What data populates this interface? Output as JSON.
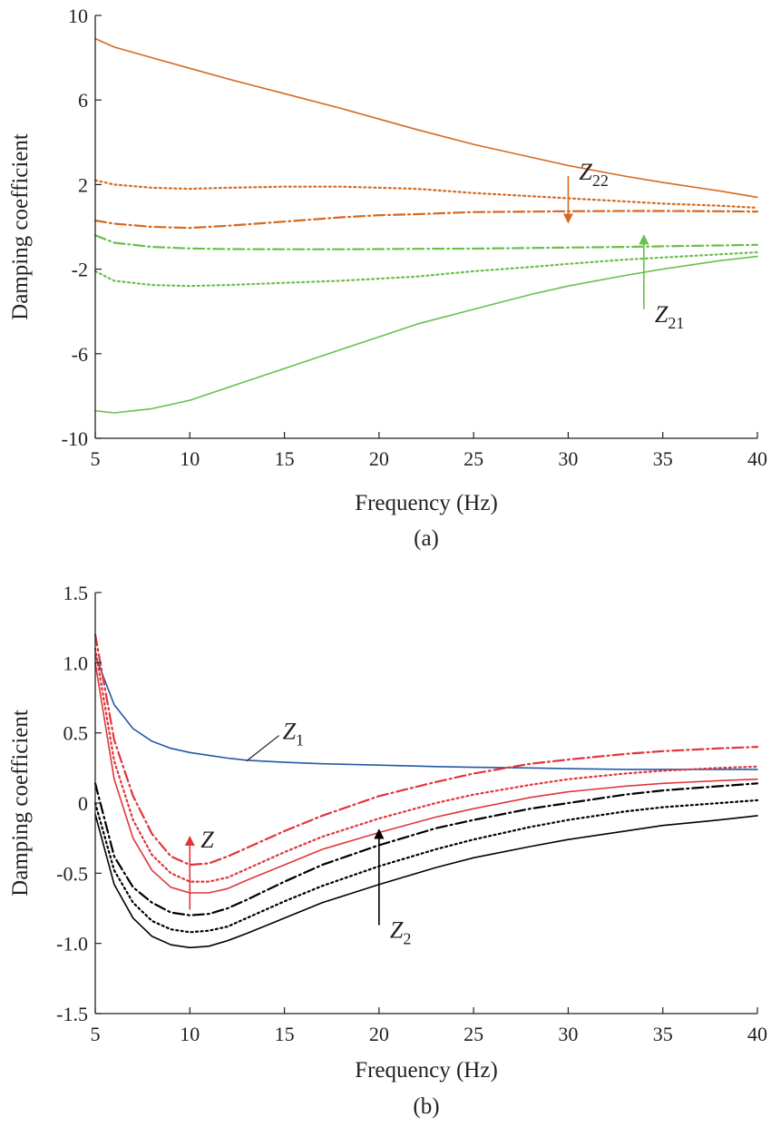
{
  "chart_data": [
    {
      "type": "line",
      "panel_label": "(a)",
      "xlabel": "Frequency (Hz)",
      "ylabel": "Damping coefficient",
      "xlim": [
        5,
        40
      ],
      "ylim": [
        -10,
        10
      ],
      "xticks": [
        "5",
        "10",
        "15",
        "20",
        "25",
        "30",
        "35",
        "40"
      ],
      "yticks": [
        "10",
        "6",
        "2",
        "-2",
        "-6",
        "-10"
      ],
      "grid": false,
      "x": [
        5,
        6,
        8,
        10,
        12,
        15,
        18,
        20,
        22,
        25,
        28,
        30,
        33,
        35,
        38,
        40
      ],
      "series": [
        {
          "group": "Z22",
          "color": "#d46a22",
          "style": "solid",
          "values": [
            8.9,
            8.5,
            8.0,
            7.5,
            7.0,
            6.3,
            5.6,
            5.1,
            4.6,
            3.9,
            3.3,
            2.9,
            2.4,
            2.1,
            1.7,
            1.4
          ]
        },
        {
          "group": "Z22",
          "color": "#d46a22",
          "style": "dotted",
          "values": [
            2.2,
            2.0,
            1.85,
            1.8,
            1.85,
            1.9,
            1.9,
            1.85,
            1.8,
            1.6,
            1.45,
            1.35,
            1.2,
            1.1,
            1.0,
            0.9
          ]
        },
        {
          "group": "Z22",
          "color": "#d46a22",
          "style": "dashdot",
          "values": [
            0.3,
            0.15,
            0.0,
            -0.05,
            0.05,
            0.25,
            0.45,
            0.55,
            0.6,
            0.7,
            0.72,
            0.74,
            0.75,
            0.75,
            0.74,
            0.72
          ]
        },
        {
          "group": "Z21",
          "color": "#6abf4b",
          "style": "dashdot",
          "values": [
            -0.4,
            -0.75,
            -0.95,
            -1.02,
            -1.05,
            -1.06,
            -1.06,
            -1.05,
            -1.04,
            -1.03,
            -1.0,
            -0.98,
            -0.95,
            -0.92,
            -0.88,
            -0.85
          ]
        },
        {
          "group": "Z21",
          "color": "#6abf4b",
          "style": "dotted",
          "values": [
            -2.1,
            -2.55,
            -2.75,
            -2.8,
            -2.75,
            -2.65,
            -2.55,
            -2.45,
            -2.35,
            -2.1,
            -1.9,
            -1.75,
            -1.55,
            -1.45,
            -1.3,
            -1.2
          ]
        },
        {
          "group": "Z21",
          "color": "#6abf4b",
          "style": "solid",
          "values": [
            -8.7,
            -8.8,
            -8.6,
            -8.2,
            -7.6,
            -6.7,
            -5.8,
            -5.2,
            -4.6,
            -3.9,
            -3.2,
            -2.8,
            -2.3,
            -2.0,
            -1.6,
            -1.4
          ]
        }
      ],
      "annotations": [
        {
          "text": "Z",
          "subscript": "22",
          "color": "#d46a22",
          "arrow": "down",
          "arrow_x": 30,
          "arrow_from": 2.4,
          "arrow_to": 0.2
        },
        {
          "text": "Z",
          "subscript": "21",
          "color": "#6abf4b",
          "arrow": "up",
          "arrow_x": 34,
          "arrow_from": -3.9,
          "arrow_to": -0.4
        }
      ]
    },
    {
      "type": "line",
      "panel_label": "(b)",
      "xlabel": "Frequency (Hz)",
      "ylabel": "Damping coefficient",
      "xlim": [
        5,
        40
      ],
      "ylim": [
        -1.5,
        1.5
      ],
      "xticks": [
        "5",
        "10",
        "15",
        "20",
        "25",
        "30",
        "35",
        "40"
      ],
      "yticks": [
        "1.5",
        "1.0",
        "0.5",
        "0",
        "-0.5",
        "-1.0",
        "-1.5"
      ],
      "grid": false,
      "x": [
        5,
        6,
        7,
        8,
        9,
        10,
        11,
        12,
        13,
        15,
        17,
        20,
        23,
        25,
        28,
        30,
        33,
        35,
        38,
        40
      ],
      "series": [
        {
          "group": "Z1",
          "color": "#2459a6",
          "style": "solid",
          "values": [
            1.05,
            0.7,
            0.53,
            0.44,
            0.39,
            0.36,
            0.34,
            0.32,
            0.305,
            0.29,
            0.28,
            0.27,
            0.26,
            0.255,
            0.25,
            0.245,
            0.24,
            0.24,
            0.24,
            0.24
          ]
        },
        {
          "group": "Z",
          "color": "#e0363a",
          "style": "dashdot",
          "values": [
            1.2,
            0.45,
            0.05,
            -0.22,
            -0.38,
            -0.44,
            -0.43,
            -0.38,
            -0.32,
            -0.2,
            -0.09,
            0.05,
            0.15,
            0.21,
            0.28,
            0.31,
            0.35,
            0.37,
            0.39,
            0.4
          ]
        },
        {
          "group": "Z",
          "color": "#e0363a",
          "style": "dotted",
          "values": [
            1.1,
            0.3,
            -0.12,
            -0.37,
            -0.5,
            -0.56,
            -0.56,
            -0.53,
            -0.47,
            -0.35,
            -0.24,
            -0.11,
            0.0,
            0.06,
            0.13,
            0.17,
            0.21,
            0.23,
            0.25,
            0.26
          ]
        },
        {
          "group": "Z",
          "color": "#e0363a",
          "style": "solid",
          "values": [
            1.0,
            0.17,
            -0.25,
            -0.48,
            -0.6,
            -0.64,
            -0.64,
            -0.61,
            -0.55,
            -0.44,
            -0.33,
            -0.21,
            -0.1,
            -0.04,
            0.04,
            0.08,
            0.12,
            0.14,
            0.16,
            0.17
          ]
        },
        {
          "group": "Z2",
          "color": "#000000",
          "style": "dashdot",
          "values": [
            0.14,
            -0.38,
            -0.6,
            -0.71,
            -0.78,
            -0.8,
            -0.79,
            -0.75,
            -0.69,
            -0.56,
            -0.44,
            -0.3,
            -0.18,
            -0.12,
            -0.04,
            0.0,
            0.06,
            0.09,
            0.12,
            0.14
          ]
        },
        {
          "group": "Z2",
          "color": "#000000",
          "style": "dotted",
          "values": [
            0.0,
            -0.48,
            -0.71,
            -0.84,
            -0.9,
            -0.92,
            -0.91,
            -0.88,
            -0.82,
            -0.7,
            -0.59,
            -0.45,
            -0.33,
            -0.26,
            -0.17,
            -0.12,
            -0.06,
            -0.03,
            0.0,
            0.02
          ]
        },
        {
          "group": "Z2",
          "color": "#000000",
          "style": "solid",
          "values": [
            -0.08,
            -0.58,
            -0.82,
            -0.95,
            -1.01,
            -1.03,
            -1.02,
            -0.98,
            -0.93,
            -0.82,
            -0.71,
            -0.58,
            -0.46,
            -0.39,
            -0.31,
            -0.26,
            -0.2,
            -0.16,
            -0.12,
            -0.09
          ]
        }
      ],
      "annotations": [
        {
          "text": "Z",
          "subscript": "1",
          "color": "#231f20",
          "leader_to": [
            13,
            0.3
          ],
          "label_at": [
            15,
            0.52
          ]
        },
        {
          "text": "Z",
          "subscript": "",
          "color": "#e0363a",
          "arrow": "up",
          "arrow_x": 10,
          "arrow_from": -0.76,
          "arrow_to": -0.24
        },
        {
          "text": "Z",
          "subscript": "2",
          "color": "#000000",
          "arrow": "up",
          "arrow_x": 20,
          "arrow_from": -0.87,
          "arrow_to": -0.19
        }
      ]
    }
  ]
}
